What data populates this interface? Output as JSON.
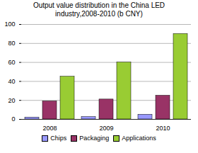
{
  "chart_data": {
    "type": "bar",
    "title": "Output value distribution in the China LED industry,2008-2010 (b CNY)",
    "categories": [
      "2008",
      "2009",
      "2010"
    ],
    "series": [
      {
        "name": "Chips",
        "color": "#9999ff",
        "values": [
          2,
          2.5,
          5
        ]
      },
      {
        "name": "Packaging",
        "color": "#993366",
        "values": [
          19,
          21,
          25
        ]
      },
      {
        "name": "Applications",
        "color": "#99cc33",
        "values": [
          45,
          60,
          90
        ]
      }
    ],
    "ylim": [
      0,
      100
    ],
    "yticks": [
      0,
      20,
      40,
      60,
      80,
      100
    ],
    "grid": true,
    "legend": "bottom"
  }
}
